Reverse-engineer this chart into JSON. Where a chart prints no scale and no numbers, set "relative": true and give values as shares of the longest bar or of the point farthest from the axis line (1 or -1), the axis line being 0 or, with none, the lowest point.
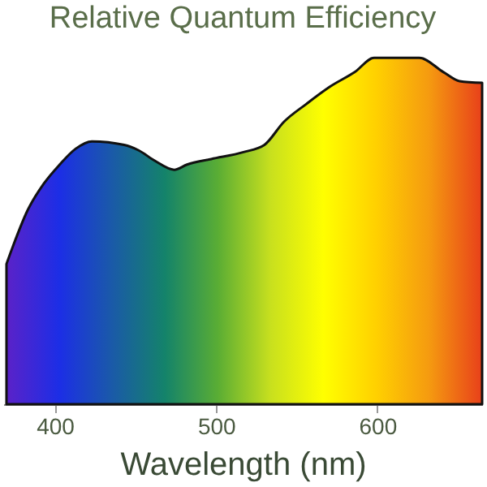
{
  "chart_data": {
    "type": "area",
    "title": "Relative Quantum Efficiency",
    "xlabel": "Wavelength (nm)",
    "relative": true,
    "xlim": [
      368,
      665
    ],
    "xticks": [
      400,
      500,
      600
    ],
    "grid": false,
    "colors": [
      "#5b22c8",
      "#1c2ee6",
      "#1a5aa8",
      "#14836a",
      "#5aad34",
      "#c8e01e",
      "#ffff00",
      "#ffd000",
      "#f59a10",
      "#e8401a"
    ],
    "series": [
      {
        "color": "#111111",
        "x": [
          370,
          374,
          383,
          393,
          403,
          413,
          423,
          443,
          452,
          462,
          474,
          482,
          497,
          517,
          530,
          542,
          556,
          571,
          586,
          598,
          626,
          641,
          651,
          665
        ],
        "values": [
          0.405,
          0.456,
          0.559,
          0.636,
          0.692,
          0.738,
          0.759,
          0.749,
          0.733,
          0.703,
          0.677,
          0.692,
          0.708,
          0.728,
          0.749,
          0.815,
          0.867,
          0.918,
          0.959,
          1.0,
          1.0,
          0.959,
          0.933,
          0.928
        ]
      }
    ]
  }
}
